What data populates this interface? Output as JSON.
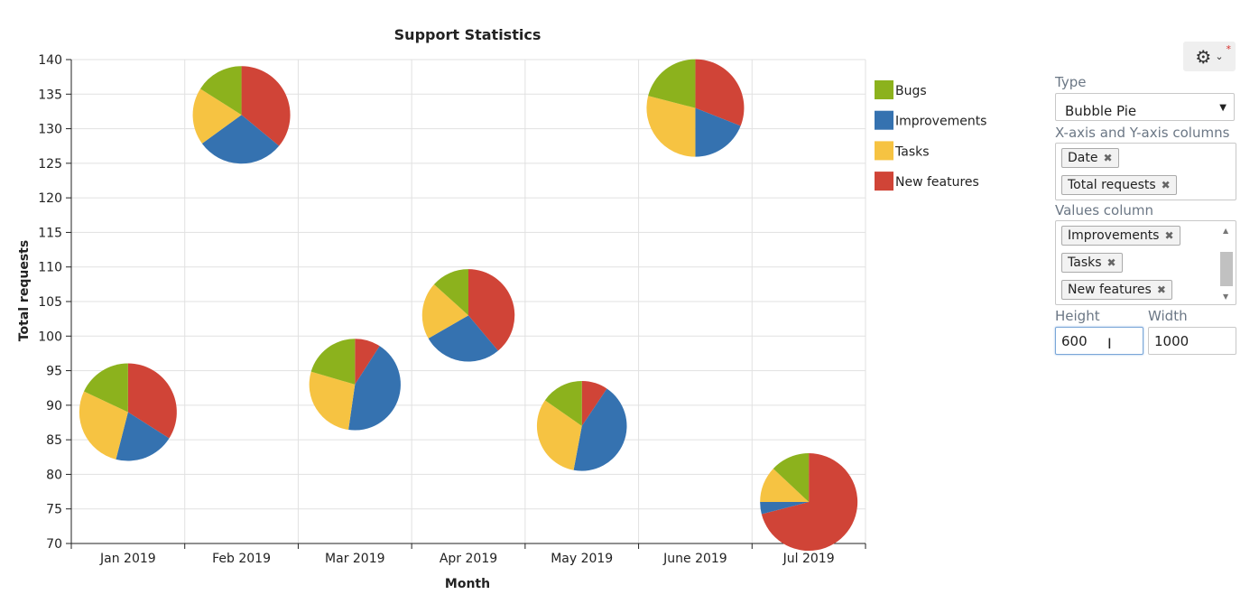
{
  "chart_data": {
    "type": "bubble-pie",
    "title": "Support Statistics",
    "xlabel": "Month",
    "ylabel": "Total requests",
    "ylim": [
      70,
      140
    ],
    "yticks": [
      70,
      75,
      80,
      85,
      90,
      95,
      100,
      105,
      110,
      115,
      120,
      125,
      130,
      135,
      140
    ],
    "categories": [
      "Jan 2019",
      "Feb 2019",
      "Mar 2019",
      "Apr 2019",
      "May 2019",
      "June 2019",
      "Jul 2019"
    ],
    "grid": true,
    "legend_position": "right",
    "series_names": [
      "Bugs",
      "Improvements",
      "Tasks",
      "New features"
    ],
    "series_colors": [
      "#8cb21d",
      "#3572b0",
      "#f6c342",
      "#d04437"
    ],
    "points": [
      {
        "x": "Jan 2019",
        "y": 89,
        "slices": [
          18,
          20,
          28,
          34
        ]
      },
      {
        "x": "Feb 2019",
        "y": 132,
        "slices": [
          16,
          29,
          19,
          36
        ]
      },
      {
        "x": "Mar 2019",
        "y": 93,
        "slices": [
          18,
          38,
          24,
          8
        ]
      },
      {
        "x": "Apr 2019",
        "y": 103,
        "slices": [
          12,
          25,
          18,
          35
        ]
      },
      {
        "x": "May 2019",
        "y": 87,
        "slices": [
          13,
          37,
          27,
          8
        ]
      },
      {
        "x": "June 2019",
        "y": 133,
        "slices": [
          21,
          19,
          29,
          31
        ]
      },
      {
        "x": "Jul 2019",
        "y": 76,
        "slices": [
          13,
          4,
          12,
          71
        ]
      }
    ]
  },
  "panel": {
    "type_label": "Type",
    "type_value": "Bubble Pie",
    "xy_label": "X-axis and Y-axis columns",
    "xy_tags": [
      "Date",
      "Total requests"
    ],
    "values_label": "Values column",
    "values_tags": [
      "Improvements",
      "Tasks",
      "New features"
    ],
    "height_label": "Height",
    "height_value": "600",
    "width_label": "Width",
    "width_value": "1000",
    "tag_remove_glyph": "✖",
    "gear_glyph": "⚙",
    "chevron_glyph": "⌄",
    "required_glyph": "*",
    "caret_glyph": "▼",
    "scroll_up_glyph": "▲",
    "scroll_down_glyph": "▼",
    "cursor_glyph": "I"
  }
}
